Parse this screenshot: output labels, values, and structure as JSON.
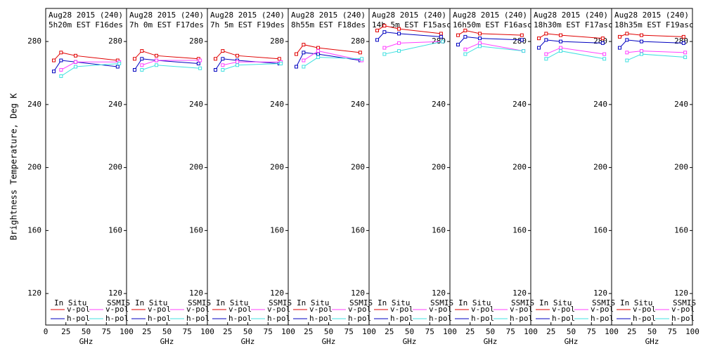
{
  "chart_data": [
    {
      "type": "line",
      "title": "Aug28 2015 (240)",
      "subtitle": "5h20m EST F16des",
      "xlabel": "GHz",
      "ylabel": "Brightness Temperature, Deg K",
      "xlim": [
        0,
        100
      ],
      "xticks": [
        0,
        25,
        50,
        75,
        100
      ],
      "ylim": [
        100,
        301
      ],
      "yticks": [
        120,
        160,
        200,
        240,
        280
      ],
      "series_groups": [
        {
          "name": "In Situ",
          "series": [
            {
              "name": "v-pol",
              "color": "#e00000",
              "x": [
                10,
                19,
                37,
                89
              ],
              "values": [
                268,
                273,
                271,
                268
              ]
            },
            {
              "name": "h-pol",
              "color": "#0000c0",
              "x": [
                10,
                19,
                37,
                89
              ],
              "values": [
                261,
                268,
                267,
                264
              ]
            }
          ]
        },
        {
          "name": "SSMIS",
          "series": [
            {
              "name": "v-pol",
              "color": "#ff40ff",
              "x": [
                19,
                37,
                91
              ],
              "values": [
                262,
                267,
                267
              ]
            },
            {
              "name": "h-pol",
              "color": "#40e0e0",
              "x": [
                19,
                37,
                91
              ],
              "values": [
                258,
                264,
                266
              ]
            }
          ]
        }
      ]
    },
    {
      "type": "line",
      "title": "Aug28 2015 (240)",
      "subtitle": "7h 0m EST F17des",
      "xlabel": "GHz",
      "xlim": [
        0,
        100
      ],
      "xticks": [
        0,
        25,
        50,
        75,
        100
      ],
      "ylim": [
        100,
        301
      ],
      "yticks": [
        120,
        160,
        200,
        240,
        280
      ],
      "series_groups": [
        {
          "name": "In Situ",
          "series": [
            {
              "name": "v-pol",
              "color": "#e00000",
              "x": [
                10,
                19,
                37,
                89
              ],
              "values": [
                269,
                274,
                271,
                269
              ]
            },
            {
              "name": "h-pol",
              "color": "#0000c0",
              "x": [
                10,
                19,
                37,
                89
              ],
              "values": [
                262,
                269,
                268,
                266
              ]
            }
          ]
        },
        {
          "name": "SSMIS",
          "series": [
            {
              "name": "v-pol",
              "color": "#ff40ff",
              "x": [
                19,
                37,
                91
              ],
              "values": [
                265,
                268,
                268
              ]
            },
            {
              "name": "h-pol",
              "color": "#40e0e0",
              "x": [
                19,
                37,
                91
              ],
              "values": [
                262,
                265,
                263
              ]
            }
          ]
        }
      ]
    },
    {
      "type": "line",
      "title": "Aug28 2015 (240)",
      "subtitle": "7h 5m EST F19des",
      "xlabel": "GHz",
      "xlim": [
        0,
        100
      ],
      "xticks": [
        0,
        25,
        50,
        75,
        100
      ],
      "ylim": [
        100,
        301
      ],
      "yticks": [
        120,
        160,
        200,
        240,
        280
      ],
      "series_groups": [
        {
          "name": "In Situ",
          "series": [
            {
              "name": "v-pol",
              "color": "#e00000",
              "x": [
                10,
                19,
                37,
                89
              ],
              "values": [
                269,
                274,
                271,
                269
              ]
            },
            {
              "name": "h-pol",
              "color": "#0000c0",
              "x": [
                10,
                19,
                37,
                89
              ],
              "values": [
                262,
                269,
                268,
                266
              ]
            }
          ]
        },
        {
          "name": "SSMIS",
          "series": [
            {
              "name": "v-pol",
              "color": "#ff40ff",
              "x": [
                19,
                37,
                91
              ],
              "values": [
                265,
                267,
                267
              ]
            },
            {
              "name": "h-pol",
              "color": "#40e0e0",
              "x": [
                19,
                37,
                91
              ],
              "values": [
                262,
                265,
                266
              ]
            }
          ]
        }
      ]
    },
    {
      "type": "line",
      "title": "Aug28 2015 (240)",
      "subtitle": "8h55m EST F18des",
      "xlabel": "GHz",
      "xlim": [
        0,
        100
      ],
      "xticks": [
        0,
        25,
        50,
        75,
        100
      ],
      "ylim": [
        100,
        301
      ],
      "yticks": [
        120,
        160,
        200,
        240,
        280
      ],
      "series_groups": [
        {
          "name": "In Situ",
          "series": [
            {
              "name": "v-pol",
              "color": "#e00000",
              "x": [
                10,
                19,
                37,
                89
              ],
              "values": [
                272,
                278,
                276,
                273
              ]
            },
            {
              "name": "h-pol",
              "color": "#0000c0",
              "x": [
                10,
                19,
                37,
                89
              ],
              "values": [
                264,
                273,
                272,
                268
              ]
            }
          ]
        },
        {
          "name": "SSMIS",
          "series": [
            {
              "name": "v-pol",
              "color": "#ff40ff",
              "x": [
                19,
                37,
                91
              ],
              "values": [
                268,
                274,
                268
              ]
            },
            {
              "name": "h-pol",
              "color": "#40e0e0",
              "x": [
                19,
                37,
                91
              ],
              "values": [
                264,
                270,
                269
              ]
            }
          ]
        }
      ]
    },
    {
      "type": "line",
      "title": "Aug28 2015 (240)",
      "subtitle": "14h 5m EST F15asc",
      "xlabel": "GHz",
      "xlim": [
        0,
        100
      ],
      "xticks": [
        0,
        25,
        50,
        75,
        100
      ],
      "ylim": [
        100,
        301
      ],
      "yticks": [
        120,
        160,
        200,
        240,
        280
      ],
      "series_groups": [
        {
          "name": "In Situ",
          "series": [
            {
              "name": "v-pol",
              "color": "#e00000",
              "x": [
                10,
                19,
                37,
                89
              ],
              "values": [
                287,
                290,
                288,
                285
              ]
            },
            {
              "name": "h-pol",
              "color": "#0000c0",
              "x": [
                10,
                19,
                37,
                89
              ],
              "values": [
                281,
                286,
                285,
                283
              ]
            }
          ]
        },
        {
          "name": "SSMIS",
          "series": [
            {
              "name": "v-pol",
              "color": "#ff40ff",
              "x": [
                19,
                37,
                91
              ],
              "values": [
                276,
                279,
                280
              ]
            },
            {
              "name": "h-pol",
              "color": "#40e0e0",
              "x": [
                19,
                37,
                91
              ],
              "values": [
                272,
                274,
                280
              ]
            }
          ]
        }
      ]
    },
    {
      "type": "line",
      "title": "Aug28 2015 (240)",
      "subtitle": "16h50m EST F16asc",
      "xlabel": "GHz",
      "xlim": [
        0,
        100
      ],
      "xticks": [
        0,
        25,
        50,
        75,
        100
      ],
      "ylim": [
        100,
        301
      ],
      "yticks": [
        120,
        160,
        200,
        240,
        280
      ],
      "series_groups": [
        {
          "name": "In Situ",
          "series": [
            {
              "name": "v-pol",
              "color": "#e00000",
              "x": [
                10,
                19,
                37,
                89
              ],
              "values": [
                284,
                287,
                285,
                284
              ]
            },
            {
              "name": "h-pol",
              "color": "#0000c0",
              "x": [
                10,
                19,
                37,
                89
              ],
              "values": [
                278,
                283,
                282,
                281
              ]
            }
          ]
        },
        {
          "name": "SSMIS",
          "series": [
            {
              "name": "v-pol",
              "color": "#ff40ff",
              "x": [
                19,
                37,
                91
              ],
              "values": [
                275,
                279,
                274
              ]
            },
            {
              "name": "h-pol",
              "color": "#40e0e0",
              "x": [
                19,
                37,
                91
              ],
              "values": [
                272,
                277,
                274
              ]
            }
          ]
        }
      ]
    },
    {
      "type": "line",
      "title": "Aug28 2015 (240)",
      "subtitle": "18h30m EST F17asc",
      "xlabel": "GHz",
      "xlim": [
        0,
        100
      ],
      "xticks": [
        0,
        25,
        50,
        75,
        100
      ],
      "ylim": [
        100,
        301
      ],
      "yticks": [
        120,
        160,
        200,
        240,
        280
      ],
      "series_groups": [
        {
          "name": "In Situ",
          "series": [
            {
              "name": "v-pol",
              "color": "#e00000",
              "x": [
                10,
                19,
                37,
                89
              ],
              "values": [
                282,
                285,
                284,
                282
              ]
            },
            {
              "name": "h-pol",
              "color": "#0000c0",
              "x": [
                10,
                19,
                37,
                89
              ],
              "values": [
                276,
                281,
                280,
                279
              ]
            }
          ]
        },
        {
          "name": "SSMIS",
          "series": [
            {
              "name": "v-pol",
              "color": "#ff40ff",
              "x": [
                19,
                37,
                91
              ],
              "values": [
                272,
                276,
                272
              ]
            },
            {
              "name": "h-pol",
              "color": "#40e0e0",
              "x": [
                19,
                37,
                91
              ],
              "values": [
                269,
                274,
                269
              ]
            }
          ]
        }
      ]
    },
    {
      "type": "line",
      "title": "Aug28 2015 (240)",
      "subtitle": "18h35m EST F19asc",
      "xlabel": "GHz",
      "xlim": [
        0,
        100
      ],
      "xticks": [
        0,
        25,
        50,
        75,
        100
      ],
      "ylim": [
        100,
        301
      ],
      "yticks": [
        120,
        160,
        200,
        240,
        280
      ],
      "series_groups": [
        {
          "name": "In Situ",
          "series": [
            {
              "name": "v-pol",
              "color": "#e00000",
              "x": [
                10,
                19,
                37,
                89
              ],
              "values": [
                283,
                285,
                284,
                283
              ]
            },
            {
              "name": "h-pol",
              "color": "#0000c0",
              "x": [
                10,
                19,
                37,
                89
              ],
              "values": [
                276,
                281,
                280,
                279
              ]
            }
          ]
        },
        {
          "name": "SSMIS",
          "series": [
            {
              "name": "v-pol",
              "color": "#ff40ff",
              "x": [
                19,
                37,
                91
              ],
              "values": [
                273,
                274,
                273
              ]
            },
            {
              "name": "h-pol",
              "color": "#40e0e0",
              "x": [
                19,
                37,
                91
              ],
              "values": [
                268,
                272,
                270
              ]
            }
          ]
        }
      ]
    }
  ]
}
